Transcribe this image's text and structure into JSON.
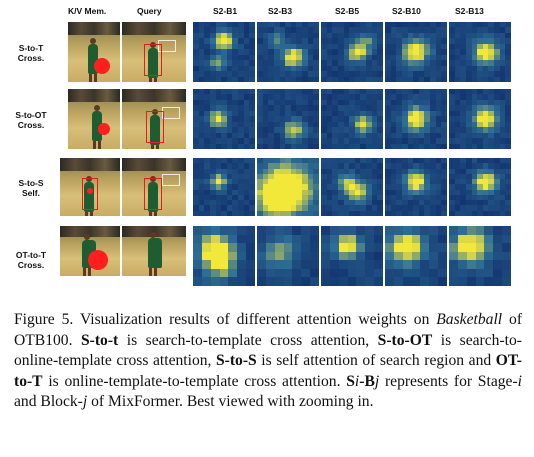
{
  "figure": {
    "column_headers": [
      "K/V Mem.",
      "Query",
      "S2-B1",
      "S2-B3",
      "S2-B5",
      "S2-B10",
      "S2-B13"
    ],
    "rows": [
      {
        "label_line1": "S-to-T",
        "label_line2": "Cross."
      },
      {
        "label_line1": "S-to-OT",
        "label_line2": "Cross."
      },
      {
        "label_line1": "S-to-S",
        "label_line2": "Self."
      },
      {
        "label_line1": "OT-to-T",
        "label_line2": "Cross."
      }
    ],
    "colors": {
      "heat_bg": "#0e2a6a",
      "heat_mid": "#2e6f95",
      "heat_hot": "#f2e83a",
      "marker": "#ff1f1f"
    }
  },
  "caption": {
    "prefix": "Figure 5.",
    "t1": " Visualization results of different attention weights on ",
    "basketball": "Basketball",
    "t2": " of OTB100. ",
    "b1": "S-to-t",
    "t3": " is search-to-template cross attention, ",
    "b2": "S-to-OT",
    "t4": " is search-to-online-template cross attention, ",
    "b3": "S-to-S",
    "t5": " is self attention of search region and ",
    "b4": "OT-to-T",
    "t6": " is online-template-to-template cross attention. ",
    "sb_s": "S",
    "sb_i": "i",
    "sb_dash": "-",
    "sb_b": "B",
    "sb_j": "j",
    "t7": " represents for Stage-",
    "stage_i": "i",
    "t8": " and Block-",
    "block_j": "j",
    "t9": " of MixFormer. Best viewed with zooming in."
  }
}
